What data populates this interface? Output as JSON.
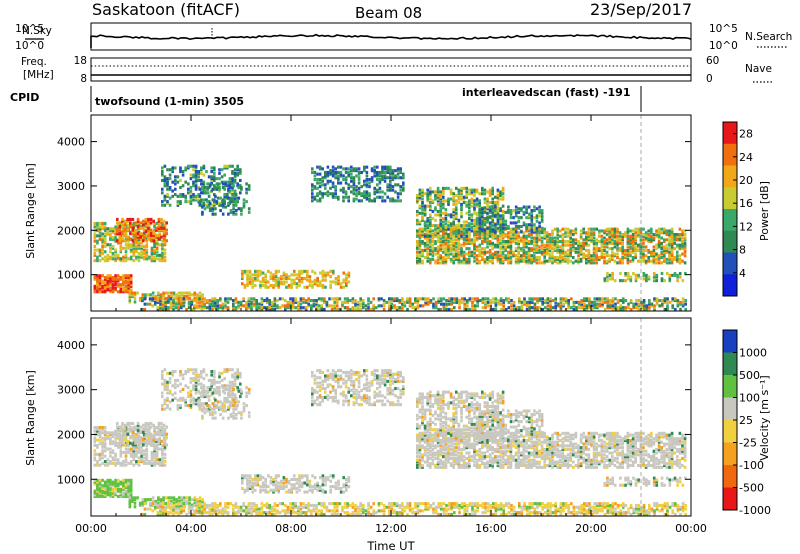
{
  "header": {
    "station": "Saskatoon (fitACF)",
    "beam": "Beam 08",
    "date": "23/Sep/2017"
  },
  "status_panel": {
    "nsky_label": "N.Sky",
    "nsearch_label": "N.Search",
    "nsky_ticks": [
      "10^5",
      "10^0"
    ],
    "nsearch_ticks": [
      "10^5",
      "10^0"
    ],
    "freq_label_1": "Freq.",
    "freq_label_2": "[MHz]",
    "freq_ticks": [
      "18",
      "8"
    ],
    "nave_label": "Nave",
    "nave_ticks": [
      "60",
      "0"
    ],
    "cpid_label": "CPID",
    "cpid_1": "twofsound (1-min) 3505",
    "cpid_2": "interleavedscan (fast) -191"
  },
  "colors": {
    "power_scale": [
      "#1020d8",
      "#2050b8",
      "#2e8a52",
      "#3aa868",
      "#c8cc30",
      "#f0a818",
      "#f07010",
      "#e81818"
    ],
    "velocity_scale": [
      "#e81818",
      "#f06810",
      "#f4a020",
      "#f0d040",
      "#c8c8c0",
      "#60c040",
      "#2e8a52",
      "#1840c0"
    ]
  },
  "chart_data": [
    {
      "type": "heatmap",
      "name": "power",
      "ylabel": "Slant Range [km]",
      "xlim": [
        "00:00",
        "24:00"
      ],
      "ylim": [
        180,
        4600
      ],
      "yticks": [
        "1000",
        "2000",
        "3000",
        "4000"
      ],
      "colorbar_label": "Power [dB]",
      "colorbar_ticks": [
        "4",
        "8",
        "12",
        "16",
        "20",
        "24",
        "28"
      ],
      "colorbar_range": [
        0,
        30
      ]
    },
    {
      "type": "heatmap",
      "name": "velocity",
      "xlabel": "Time UT",
      "ylabel": "Slant Range [km]",
      "xlim": [
        "00:00",
        "24:00"
      ],
      "ylim": [
        180,
        4600
      ],
      "xticks": [
        "00:00",
        "04:00",
        "08:00",
        "12:00",
        "16:00",
        "20:00",
        "00:00"
      ],
      "yticks": [
        "1000",
        "2000",
        "3000",
        "4000"
      ],
      "colorbar_label": "Velocity [m s⁻¹]",
      "colorbar_ticks": [
        "1000",
        "500",
        "100",
        "25",
        "-25",
        "-100",
        "-500",
        "-1000"
      ]
    }
  ]
}
